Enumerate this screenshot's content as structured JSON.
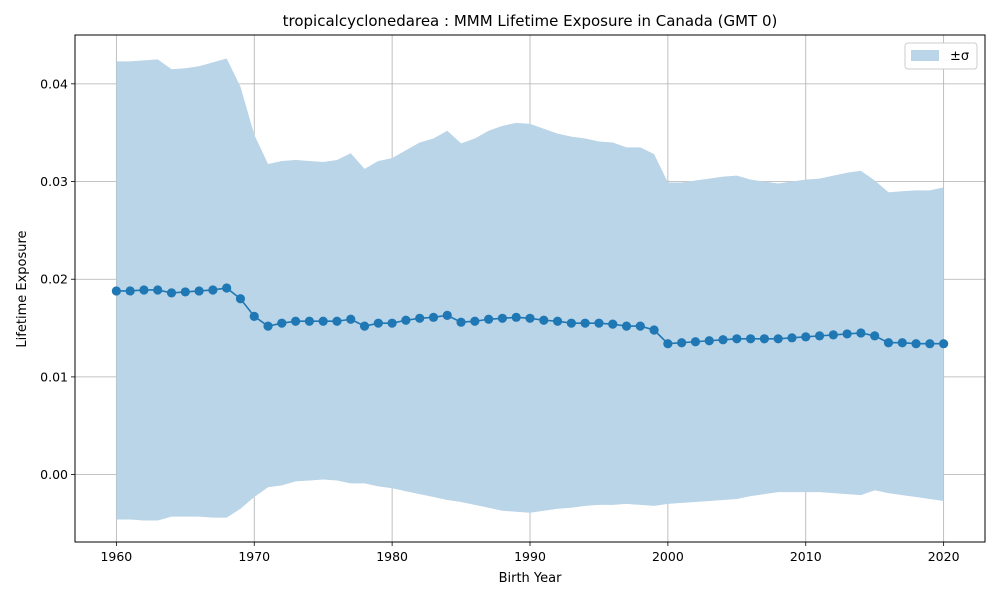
{
  "chart_data": {
    "type": "line",
    "title": "tropicalcyclonedarea : MMM Lifetime Exposure in Canada (GMT 0)",
    "xlabel": "Birth Year",
    "ylabel": "Lifetime Exposure",
    "xlim": [
      1957,
      2023
    ],
    "ylim": [
      -0.0069,
      0.045
    ],
    "xticks": [
      1960,
      1970,
      1980,
      1990,
      2000,
      2010,
      2020
    ],
    "xtick_labels": [
      "1960",
      "1970",
      "1980",
      "1990",
      "2000",
      "2010",
      "2020"
    ],
    "yticks": [
      0.0,
      0.01,
      0.02,
      0.03,
      0.04
    ],
    "ytick_labels": [
      "0.00",
      "0.01",
      "0.02",
      "0.03",
      "0.04"
    ],
    "grid": true,
    "legend": {
      "placement": "top-right",
      "entries": [
        "±σ"
      ]
    },
    "colors": {
      "line": "#1f77b4",
      "band": "#bad4e8"
    },
    "x": [
      1960,
      1961,
      1962,
      1963,
      1964,
      1965,
      1966,
      1967,
      1968,
      1969,
      1970,
      1971,
      1972,
      1973,
      1974,
      1975,
      1976,
      1977,
      1978,
      1979,
      1980,
      1981,
      1982,
      1983,
      1984,
      1985,
      1986,
      1987,
      1988,
      1989,
      1990,
      1991,
      1992,
      1993,
      1994,
      1995,
      1996,
      1997,
      1998,
      1999,
      2000,
      2001,
      2002,
      2003,
      2004,
      2005,
      2006,
      2007,
      2008,
      2009,
      2010,
      2011,
      2012,
      2013,
      2014,
      2015,
      2016,
      2017,
      2018,
      2019,
      2020
    ],
    "series": [
      {
        "values": [
          0.0188,
          0.0188,
          0.0189,
          0.0189,
          0.0186,
          0.0187,
          0.0188,
          0.0189,
          0.0191,
          0.018,
          0.0162,
          0.0152,
          0.0155,
          0.0157,
          0.0157,
          0.0157,
          0.0157,
          0.0159,
          0.0152,
          0.0155,
          0.0155,
          0.0158,
          0.016,
          0.0161,
          0.0163,
          0.0156,
          0.0157,
          0.0159,
          0.016,
          0.0161,
          0.016,
          0.0158,
          0.0157,
          0.0155,
          0.0155,
          0.0155,
          0.0154,
          0.0152,
          0.0152,
          0.0148,
          0.0134,
          0.0135,
          0.0136,
          0.0137,
          0.0138,
          0.0139,
          0.0139,
          0.0139,
          0.0139,
          0.014,
          0.0141,
          0.0142,
          0.0143,
          0.0144,
          0.0145,
          0.0142,
          0.0135,
          0.0135,
          0.0134,
          0.0134,
          0.0134
        ]
      }
    ],
    "band_upper": [
      0.0423,
      0.0423,
      0.0424,
      0.0425,
      0.0415,
      0.0416,
      0.0418,
      0.0422,
      0.0426,
      0.0397,
      0.0348,
      0.0318,
      0.0321,
      0.0322,
      0.0321,
      0.032,
      0.0322,
      0.0329,
      0.0313,
      0.0321,
      0.0324,
      0.0332,
      0.034,
      0.0344,
      0.0352,
      0.0339,
      0.0344,
      0.0352,
      0.0357,
      0.036,
      0.0359,
      0.0354,
      0.0349,
      0.0346,
      0.0344,
      0.0341,
      0.034,
      0.0335,
      0.0335,
      0.0328,
      0.0299,
      0.0299,
      0.0301,
      0.0303,
      0.0305,
      0.0306,
      0.0302,
      0.03,
      0.0298,
      0.03,
      0.0302,
      0.0303,
      0.0306,
      0.0309,
      0.0311,
      0.0301,
      0.0289,
      0.029,
      0.0291,
      0.0291,
      0.0294
    ],
    "band_lower": [
      -0.0046,
      -0.0046,
      -0.0047,
      -0.0047,
      -0.0043,
      -0.0043,
      -0.0043,
      -0.0044,
      -0.0044,
      -0.0035,
      -0.0023,
      -0.0013,
      -0.0011,
      -0.0007,
      -0.0006,
      -0.0005,
      -0.0006,
      -0.0009,
      -0.0009,
      -0.0012,
      -0.0014,
      -0.0017,
      -0.002,
      -0.0023,
      -0.0026,
      -0.0028,
      -0.0031,
      -0.0034,
      -0.0037,
      -0.0038,
      -0.0039,
      -0.0037,
      -0.0035,
      -0.0034,
      -0.0032,
      -0.0031,
      -0.0031,
      -0.003,
      -0.0031,
      -0.0032,
      -0.003,
      -0.0029,
      -0.0028,
      -0.0027,
      -0.0026,
      -0.0025,
      -0.0022,
      -0.002,
      -0.0018,
      -0.0018,
      -0.0018,
      -0.0018,
      -0.0019,
      -0.002,
      -0.0021,
      -0.0016,
      -0.0019,
      -0.0021,
      -0.0023,
      -0.0025,
      -0.0027
    ]
  }
}
